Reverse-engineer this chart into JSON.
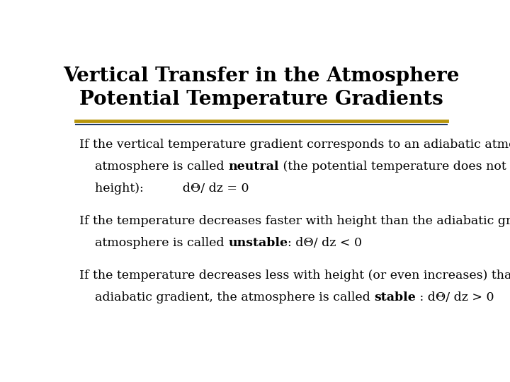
{
  "title_line1": "Vertical Transfer in the Atmosphere",
  "title_line2": "Potential Temperature Gradients",
  "title_fontsize": 20,
  "body_fontsize": 12.5,
  "background_color": "#ffffff",
  "title_color": "#000000",
  "text_color": "#000000",
  "separator_color_gold": "#b8960c",
  "separator_color_blue": "#1f3864",
  "para1_line1": "If the vertical temperature gradient corresponds to an adiabatic atmosphere, the",
  "para1_line2_prefix": "    atmosphere is called ",
  "para1_bold": "neutral",
  "para1_line2_suffix": " (the potential temperature does not change with",
  "para1_line3": "    height):          dΘ/ dz = 0",
  "para2_line1": "If the temperature decreases faster with height than the adiabatic gradient, the",
  "para2_line2_prefix": "    atmosphere is called ",
  "para2_bold": "unstable",
  "para2_line2_suffix": ": dΘ/ dz < 0",
  "para3_line1": "If the temperature decreases less with height (or even increases) than the",
  "para3_line2_prefix": "    adiabatic gradient, the atmosphere is called ",
  "para3_bold": "stable",
  "para3_line2_suffix": " : dΘ/ dz > 0"
}
